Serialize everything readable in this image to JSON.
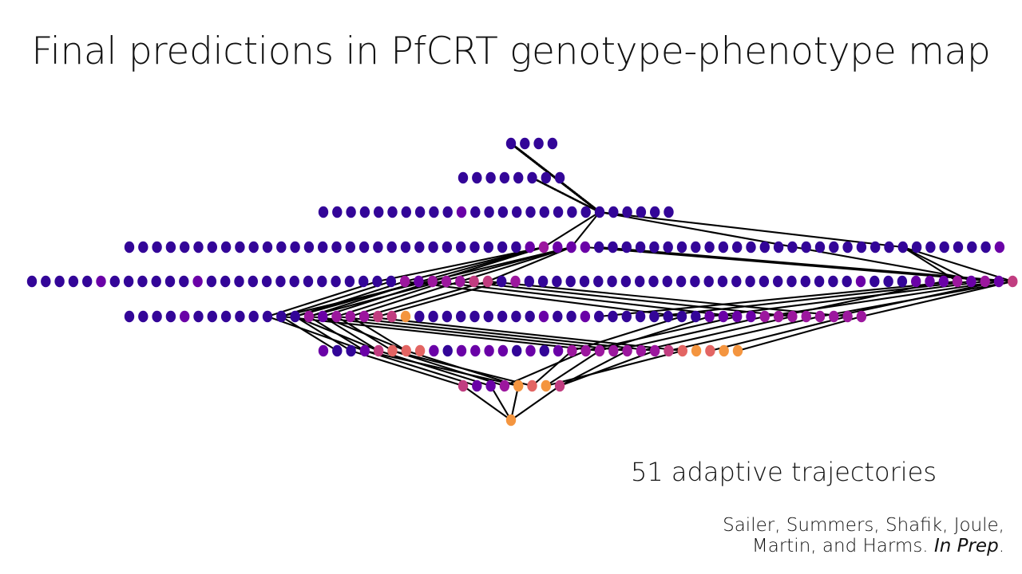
{
  "slide": {
    "title": "Final predictions in PfCRT genotype-phenotype map"
  },
  "annotation": {
    "trajectories": "51 adaptive trajectories"
  },
  "citation": {
    "line1": "Sailer, Summers, Shafik, Joule,",
    "line2_prefix": "Martin, and Harms. ",
    "line2_italic": "In Prep",
    "line2_suffix": "."
  },
  "network": {
    "node_layers": [
      "1111",
      "11111111",
      "11111111112111111111111111",
      "1111111111111111111111111111123222111111111111111111111111111112",
      "111112111111211111111111111323334413111111111111111111111111211122232324",
      "111121111111132333446111111111211211111111222233333333",
      "2112455521222212123333333456566",
      "42236564",
      "6"
    ],
    "color_scale": [
      "#1c0d87",
      "#330598",
      "#6a01a7",
      "#9c179e",
      "#c13d80",
      "#e36563",
      "#f4953f",
      "#fcce25",
      "#f0f921"
    ],
    "edge_color": "#000000"
  }
}
